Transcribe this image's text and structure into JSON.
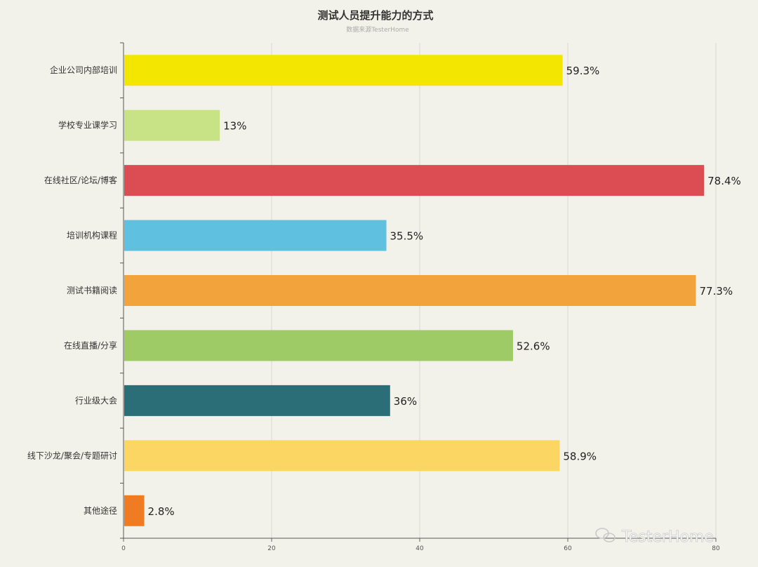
{
  "chart_data": {
    "type": "bar",
    "orientation": "horizontal",
    "title": "测试人员提升能力的方式",
    "subtitle": "数据来源TesterHome",
    "categories": [
      "企业公司内部培训",
      "学校专业课学习",
      "在线社区/论坛/博客",
      "培训机构课程",
      "测试书籍阅读",
      "在线直播/分享",
      "行业级大会",
      "线下沙龙/聚会/专题研讨",
      "其他途径"
    ],
    "values": [
      59.3,
      13,
      78.4,
      35.5,
      77.3,
      52.6,
      36,
      58.9,
      2.8
    ],
    "value_labels": [
      "59.3%",
      "13%",
      "78.4%",
      "35.5%",
      "77.3%",
      "52.6%",
      "36%",
      "58.9%",
      "2.8%"
    ],
    "colors": [
      "#f3e600",
      "#c8e386",
      "#dc4d53",
      "#5fc0e0",
      "#f2a33c",
      "#9fcb66",
      "#2c6e78",
      "#fbd662",
      "#ef7b22"
    ],
    "xlim": [
      0,
      80
    ],
    "xticks": [
      0,
      20,
      40,
      60,
      80
    ],
    "grid": true,
    "legend": "none"
  },
  "watermark": "TesterHome"
}
